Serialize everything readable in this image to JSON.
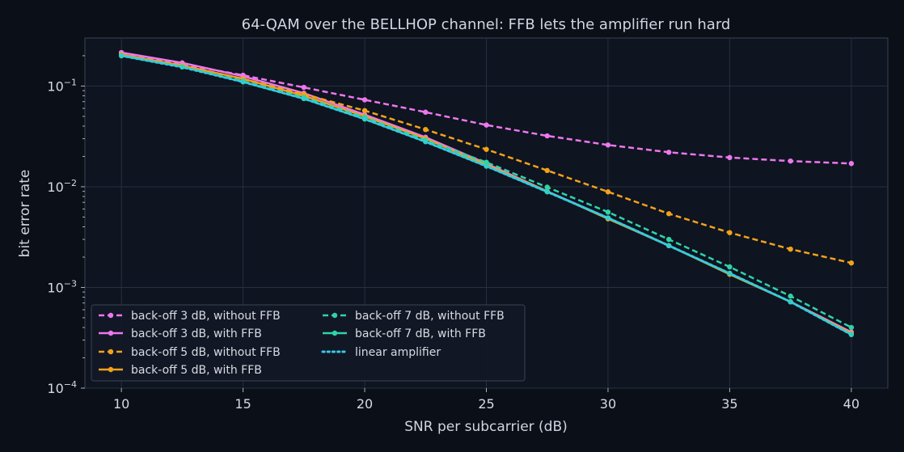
{
  "chart_data": {
    "type": "line",
    "title": "64-QAM over the BELLHOP channel: FFB lets the amplifier run hard",
    "xlabel": "SNR per subcarrier (dB)",
    "ylabel": "bit error rate",
    "xlim": [
      8.5,
      41.5
    ],
    "ylim": [
      0.0001,
      0.3
    ],
    "yscale": "log",
    "grid": true,
    "legend_position": "lower-left",
    "x_ticks": [
      10,
      15,
      20,
      25,
      30,
      35,
      40
    ],
    "x_tick_labels": [
      "10",
      "15",
      "20",
      "25",
      "30",
      "35",
      "40"
    ],
    "y_ticks": [
      0.0001,
      0.001,
      0.01,
      0.1
    ],
    "y_tick_labels": [
      {
        "base": "10",
        "exp": "−4"
      },
      {
        "base": "10",
        "exp": "−3"
      },
      {
        "base": "10",
        "exp": "−2"
      },
      {
        "base": "10",
        "exp": "−1"
      }
    ],
    "x": [
      10,
      12.5,
      15,
      17.5,
      20,
      22.5,
      25,
      27.5,
      30,
      32.5,
      35,
      37.5,
      40
    ],
    "series": [
      {
        "name": "back-off 3 dB, without FFB",
        "color": "#ee77ee",
        "dash": "dashed",
        "values": [
          0.215,
          0.165,
          0.128,
          0.097,
          0.073,
          0.055,
          0.041,
          0.032,
          0.026,
          0.022,
          0.0195,
          0.018,
          0.017
        ]
      },
      {
        "name": "back-off 3 dB, with FFB",
        "color": "#ee77ee",
        "dash": "solid",
        "values": [
          0.215,
          0.17,
          0.125,
          0.085,
          0.052,
          0.031,
          0.017,
          0.009,
          0.0049,
          0.0026,
          0.00138,
          0.00072,
          0.00036
        ]
      },
      {
        "name": "back-off 5 dB, without FFB",
        "color": "#f3a21b",
        "dash": "dashed",
        "values": [
          0.205,
          0.16,
          0.118,
          0.083,
          0.057,
          0.037,
          0.0235,
          0.0145,
          0.0089,
          0.0054,
          0.0035,
          0.0024,
          0.00175
        ]
      },
      {
        "name": "back-off 5 dB, with FFB",
        "color": "#f3a21b",
        "dash": "solid",
        "values": [
          0.205,
          0.16,
          0.118,
          0.08,
          0.05,
          0.03,
          0.0165,
          0.009,
          0.0048,
          0.0026,
          0.00135,
          0.00072,
          0.00035
        ]
      },
      {
        "name": "back-off 7 dB, without FFB",
        "color": "#2fd3a8",
        "dash": "dashed",
        "values": [
          0.2,
          0.155,
          0.112,
          0.077,
          0.049,
          0.029,
          0.0175,
          0.0099,
          0.0056,
          0.003,
          0.0016,
          0.00082,
          0.0004
        ]
      },
      {
        "name": "back-off 7 dB, with FFB",
        "color": "#2fd3a8",
        "dash": "solid",
        "values": [
          0.2,
          0.155,
          0.11,
          0.075,
          0.047,
          0.028,
          0.016,
          0.0089,
          0.0049,
          0.0026,
          0.00138,
          0.00072,
          0.00034
        ]
      },
      {
        "name": "linear amplifier",
        "color": "#35c9ea",
        "dash": "dotted",
        "values": [
          0.2,
          0.154,
          0.11,
          0.075,
          0.047,
          0.028,
          0.016,
          0.0089,
          0.0049,
          0.0026,
          0.00138,
          0.00072,
          0.00034
        ]
      }
    ]
  }
}
